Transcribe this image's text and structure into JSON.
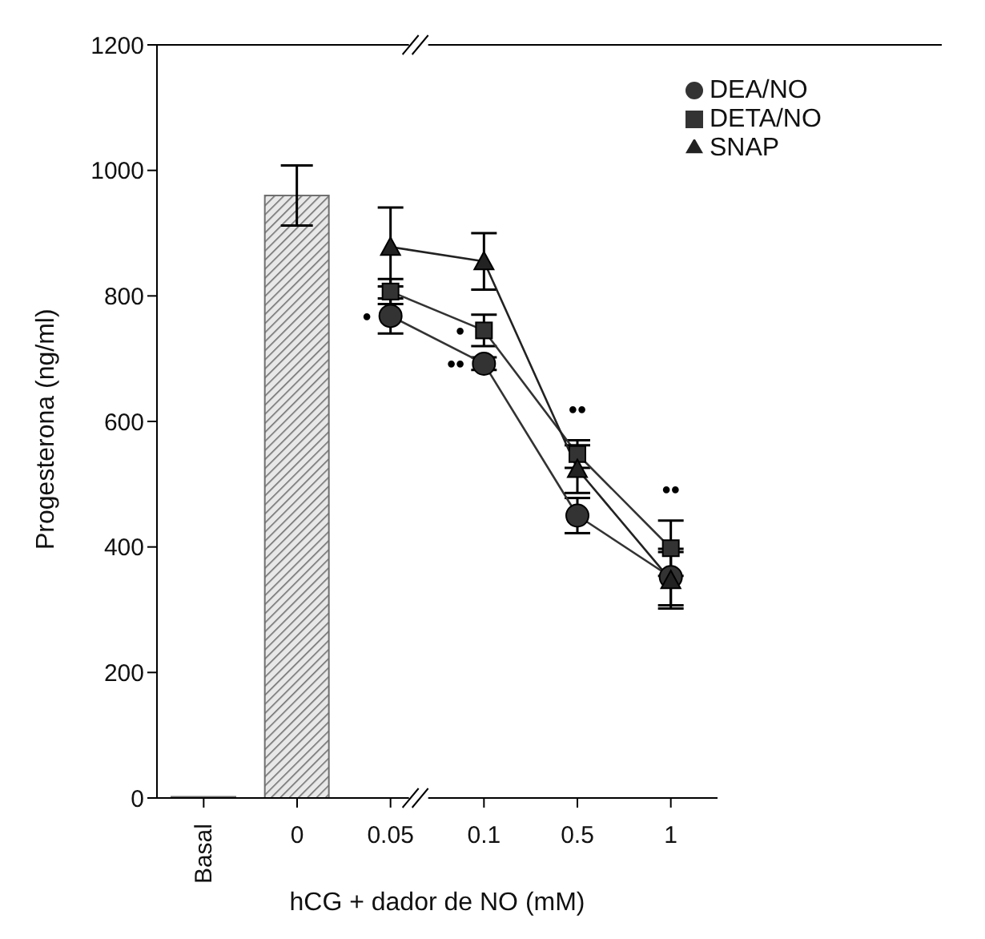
{
  "chart_data": {
    "type": "line",
    "xlabel": "hCG + dador de NO (mM)",
    "ylabel": "Progesterona (ng/ml)",
    "categories": [
      "Basal",
      "0",
      "0.05",
      "0.1",
      "0.5",
      "1"
    ],
    "series": [
      {
        "type": "bar",
        "color": "#707070",
        "values": [
          2,
          960,
          null,
          null,
          null,
          null
        ],
        "errors": [
          null,
          48,
          null,
          null,
          null,
          null
        ]
      },
      {
        "name": "DEA/NO",
        "color": "#333333",
        "marker": "circle",
        "values": [
          null,
          null,
          768,
          692,
          450,
          352
        ],
        "errors": [
          null,
          null,
          28,
          10,
          28,
          45
        ]
      },
      {
        "name": "DETA/NO",
        "color": "#333333",
        "marker": "square",
        "values": [
          null,
          null,
          807,
          745,
          548,
          398
        ],
        "errors": [
          null,
          null,
          20,
          25,
          22,
          44
        ]
      },
      {
        "name": "SNAP",
        "color": "#222222",
        "marker": "triangle",
        "values": [
          null,
          null,
          878,
          855,
          524,
          347
        ],
        "errors": [
          null,
          null,
          63,
          45,
          38,
          45
        ]
      }
    ],
    "ylim": [
      0,
      1200
    ],
    "yticks": [
      0,
      200,
      400,
      600,
      800,
      1000,
      1200
    ],
    "legend": "top right",
    "annotations": [
      {
        "text": "•",
        "x": "0.05",
        "y": 768
      },
      {
        "text": "•",
        "x": "0.1",
        "y": 745
      },
      {
        "text": "••",
        "x": "0.1",
        "y": 692
      },
      {
        "text": "••",
        "x": "0.5",
        "y": 570
      },
      {
        "text": "••",
        "x": "1",
        "y": 442
      }
    ]
  }
}
